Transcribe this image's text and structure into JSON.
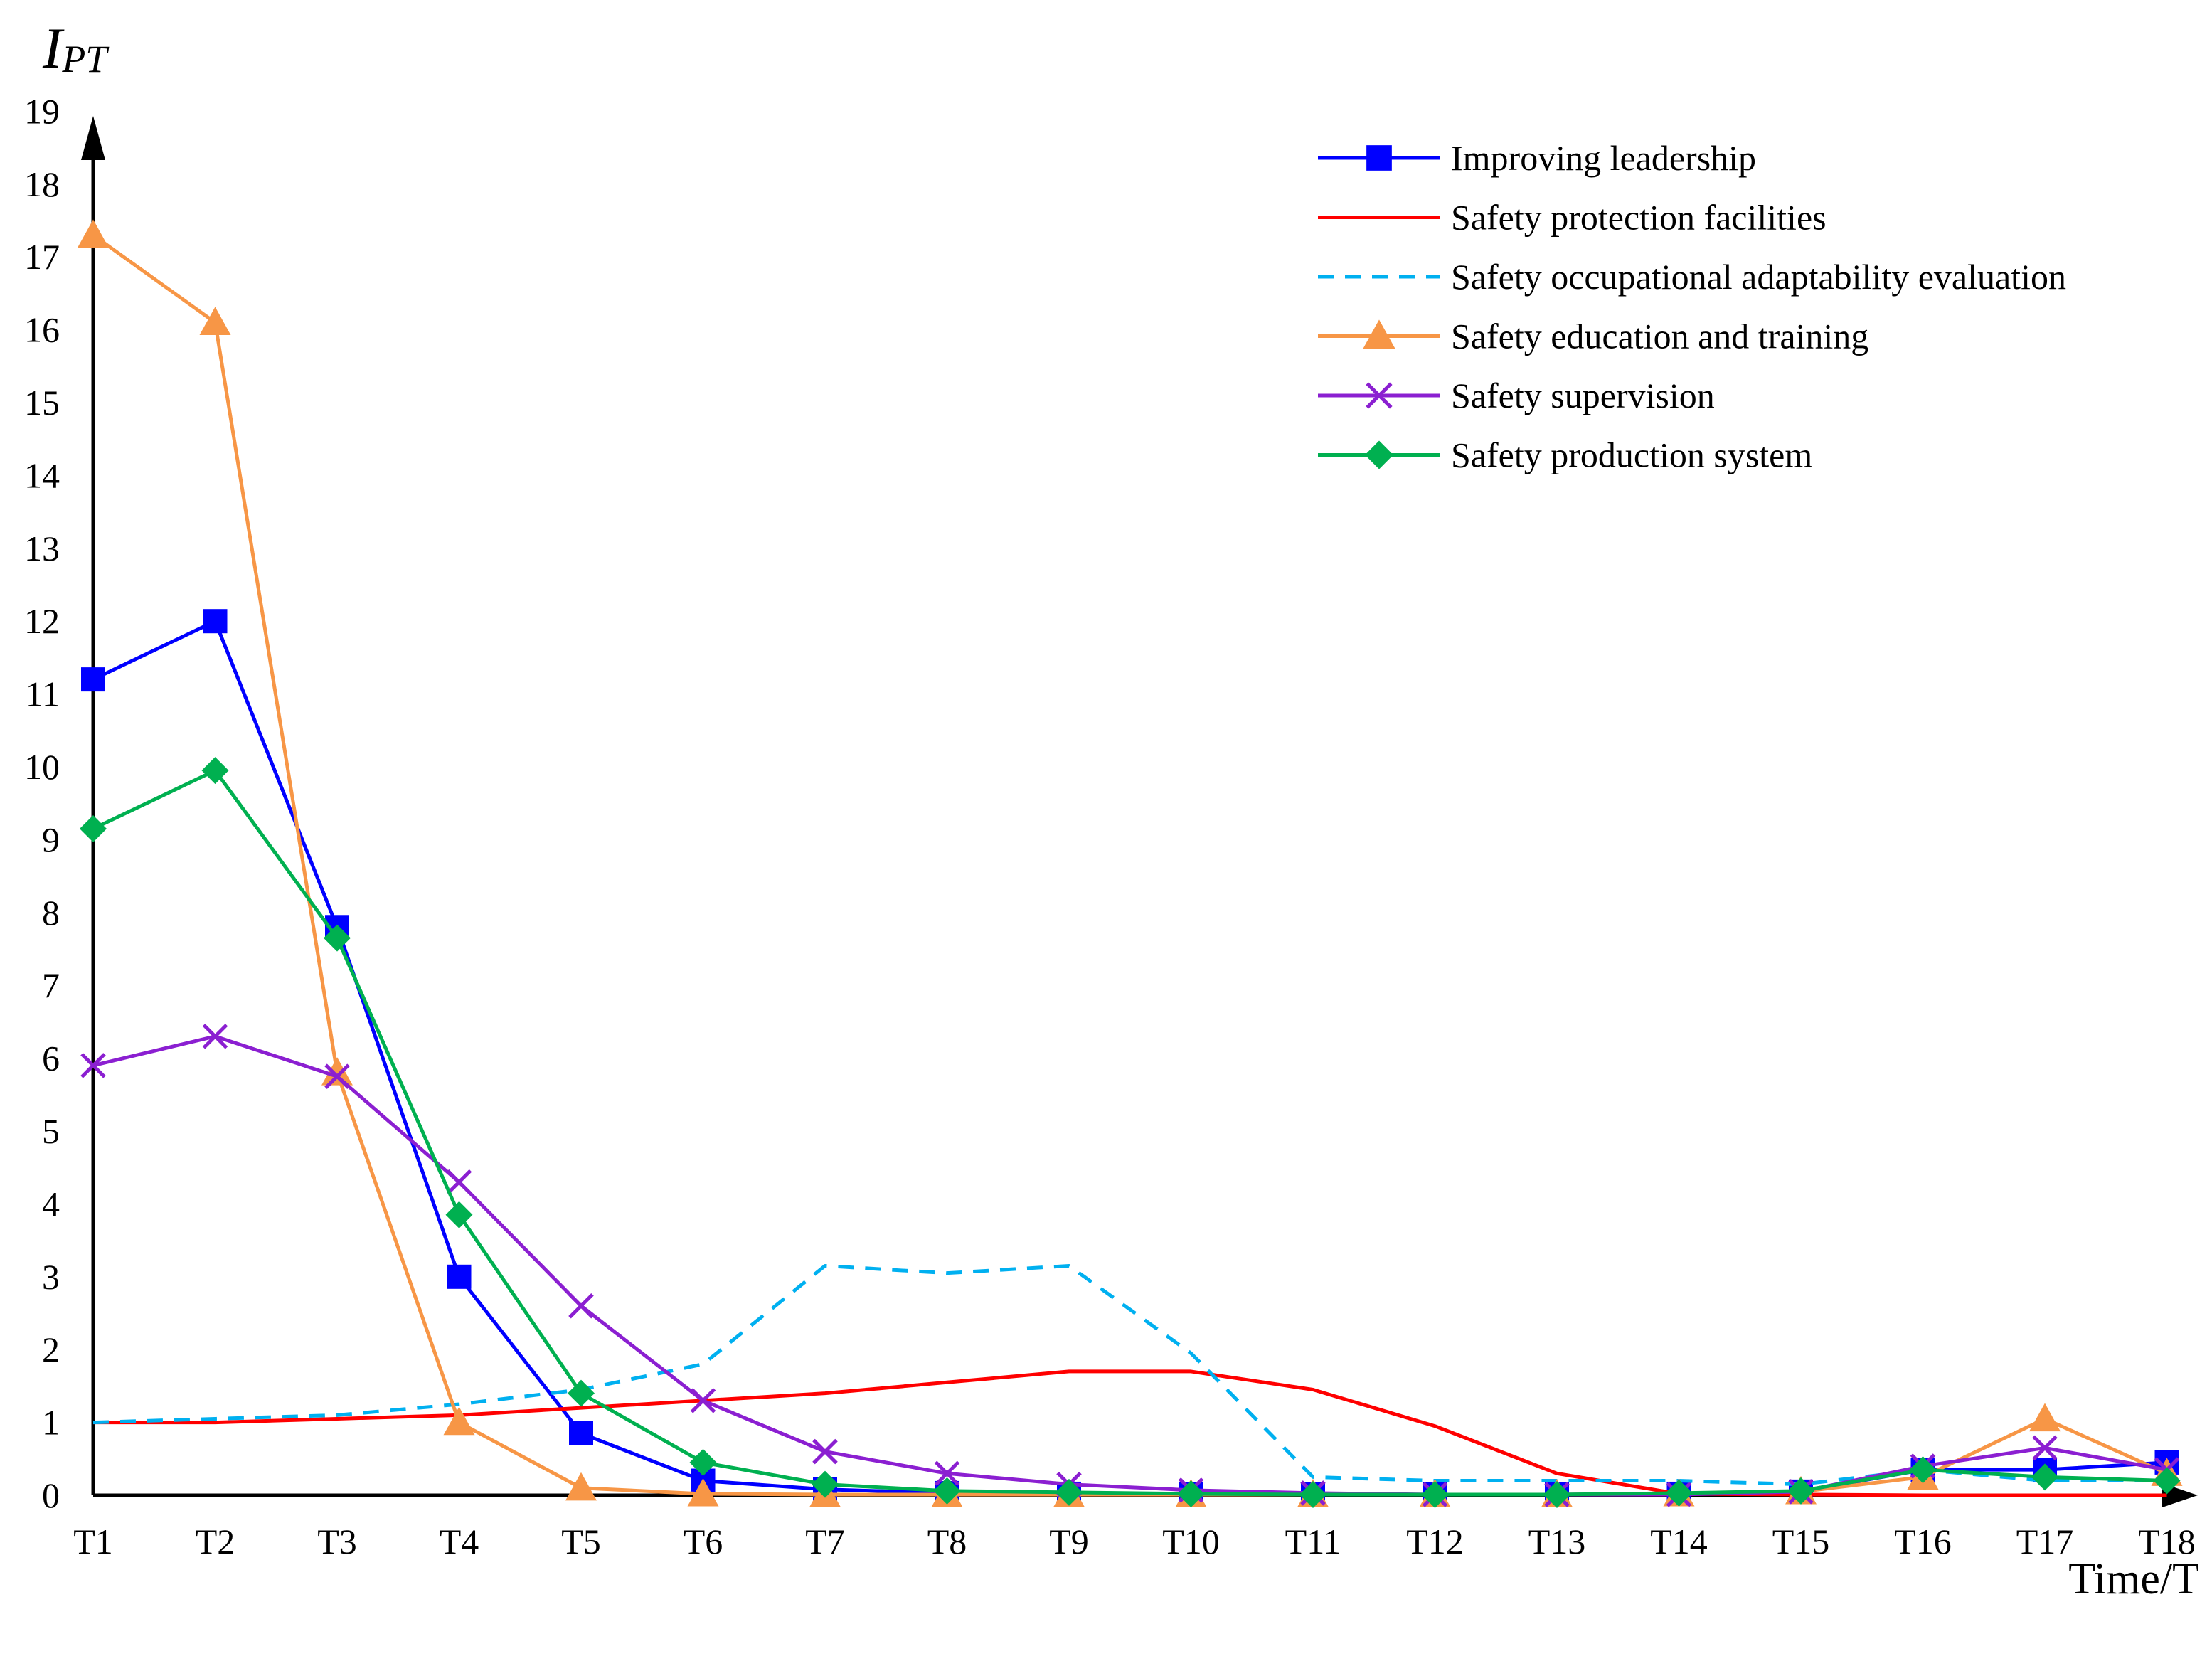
{
  "chart_data": {
    "type": "line",
    "title": "",
    "ylabel": "IPT",
    "ylabel_main": "I",
    "ylabel_sub": "PT",
    "xlabel": "Time/T",
    "ylim": [
      0,
      19
    ],
    "yticks": [
      "0",
      "1",
      "2",
      "3",
      "4",
      "5",
      "6",
      "7",
      "8",
      "9",
      "10",
      "11",
      "12",
      "13",
      "14",
      "15",
      "16",
      "17",
      "18",
      "19"
    ],
    "categories": [
      "T1",
      "T2",
      "T3",
      "T4",
      "T5",
      "T6",
      "T7",
      "T8",
      "T9",
      "T10",
      "T11",
      "T12",
      "T13",
      "T14",
      "T15",
      "T16",
      "T17",
      "T18"
    ],
    "legend_position": "top-right",
    "series": [
      {
        "name": "Improving leadership",
        "color": "#0000ff",
        "marker": "square",
        "dash": "solid",
        "values": [
          11.2,
          12.0,
          7.8,
          3.0,
          0.85,
          0.2,
          0.08,
          0.03,
          0.02,
          0.01,
          0.01,
          0.01,
          0.01,
          0.02,
          0.05,
          0.35,
          0.35,
          0.45
        ]
      },
      {
        "name": "Safety protection facilities",
        "color": "#ff0000",
        "marker": "none",
        "dash": "solid",
        "values": [
          1.0,
          1.0,
          1.05,
          1.1,
          1.2,
          1.3,
          1.4,
          1.55,
          1.7,
          1.7,
          1.45,
          0.95,
          0.3,
          0.02,
          0.01,
          0.0,
          0.0,
          0.0
        ]
      },
      {
        "name": "Safety occupational adaptability evaluation",
        "color": "#00b0f0",
        "marker": "none",
        "dash": "dashed",
        "values": [
          1.0,
          1.05,
          1.1,
          1.25,
          1.45,
          1.8,
          3.15,
          3.05,
          3.15,
          1.95,
          0.25,
          0.2,
          0.2,
          0.2,
          0.15,
          0.35,
          0.2,
          0.2
        ]
      },
      {
        "name": "Safety education and training",
        "color": "#f79646",
        "marker": "triangle",
        "dash": "solid",
        "values": [
          17.3,
          16.1,
          5.8,
          1.0,
          0.1,
          0.02,
          0.01,
          0.01,
          0.01,
          0.01,
          0.01,
          0.01,
          0.01,
          0.02,
          0.05,
          0.25,
          1.05,
          0.3
        ]
      },
      {
        "name": "Safety supervision",
        "color": "#8b1fd1",
        "marker": "x",
        "dash": "solid",
        "values": [
          5.9,
          6.3,
          5.75,
          4.3,
          2.6,
          1.3,
          0.6,
          0.3,
          0.15,
          0.07,
          0.03,
          0.01,
          0.01,
          0.01,
          0.05,
          0.4,
          0.65,
          0.35
        ]
      },
      {
        "name": "Safety production system",
        "color": "#00b050",
        "marker": "diamond",
        "dash": "solid",
        "values": [
          9.15,
          9.95,
          7.65,
          3.85,
          1.4,
          0.45,
          0.15,
          0.06,
          0.04,
          0.02,
          0.01,
          0.01,
          0.01,
          0.03,
          0.06,
          0.35,
          0.25,
          0.2
        ]
      }
    ]
  }
}
